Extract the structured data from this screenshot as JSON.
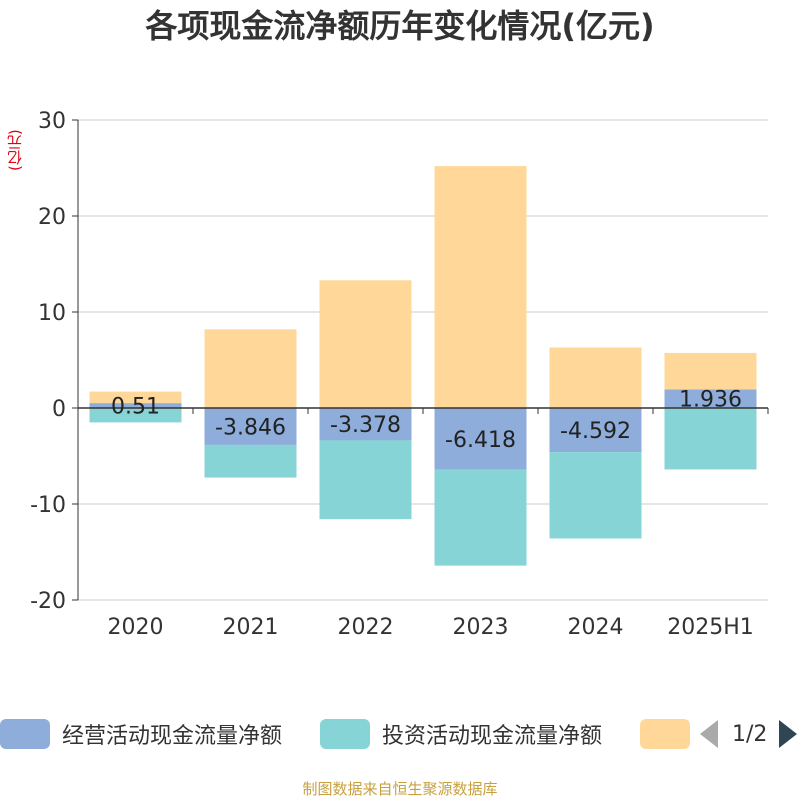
{
  "title": "各项现金流净额历年变化情况(亿元)",
  "y_unit": "(亿元)",
  "footer": "制图数据来自恒生聚源数据库",
  "pager": {
    "text": "1/2"
  },
  "colors": {
    "operating": "#8eaddb",
    "investing": "#86d4d6",
    "financing": "#ffd899",
    "axis": "#333333",
    "grid": "#cccccc"
  },
  "chart_data": {
    "type": "bar",
    "stacked": true,
    "categories": [
      "2020",
      "2021",
      "2022",
      "2023",
      "2024",
      "2025H1"
    ],
    "series": [
      {
        "name": "经营活动现金流量净额",
        "values": [
          0.51,
          -3.846,
          -3.378,
          -6.418,
          -4.592,
          1.936
        ],
        "labels": [
          "0.51",
          "-3.846",
          "-3.378",
          "-6.418",
          "-4.592",
          "1.936"
        ]
      },
      {
        "name": "投资活动现金流量净额",
        "values": [
          -1.5,
          -3.4,
          -8.2,
          -10.0,
          -9.0,
          -6.4
        ]
      },
      {
        "name": "",
        "values": [
          1.2,
          8.2,
          13.3,
          25.2,
          6.3,
          3.8
        ]
      }
    ],
    "yticks": [
      30,
      20,
      10,
      0,
      -10,
      -20
    ],
    "ylim": [
      -20,
      30
    ],
    "grid": true,
    "legend_position": "bottom"
  }
}
